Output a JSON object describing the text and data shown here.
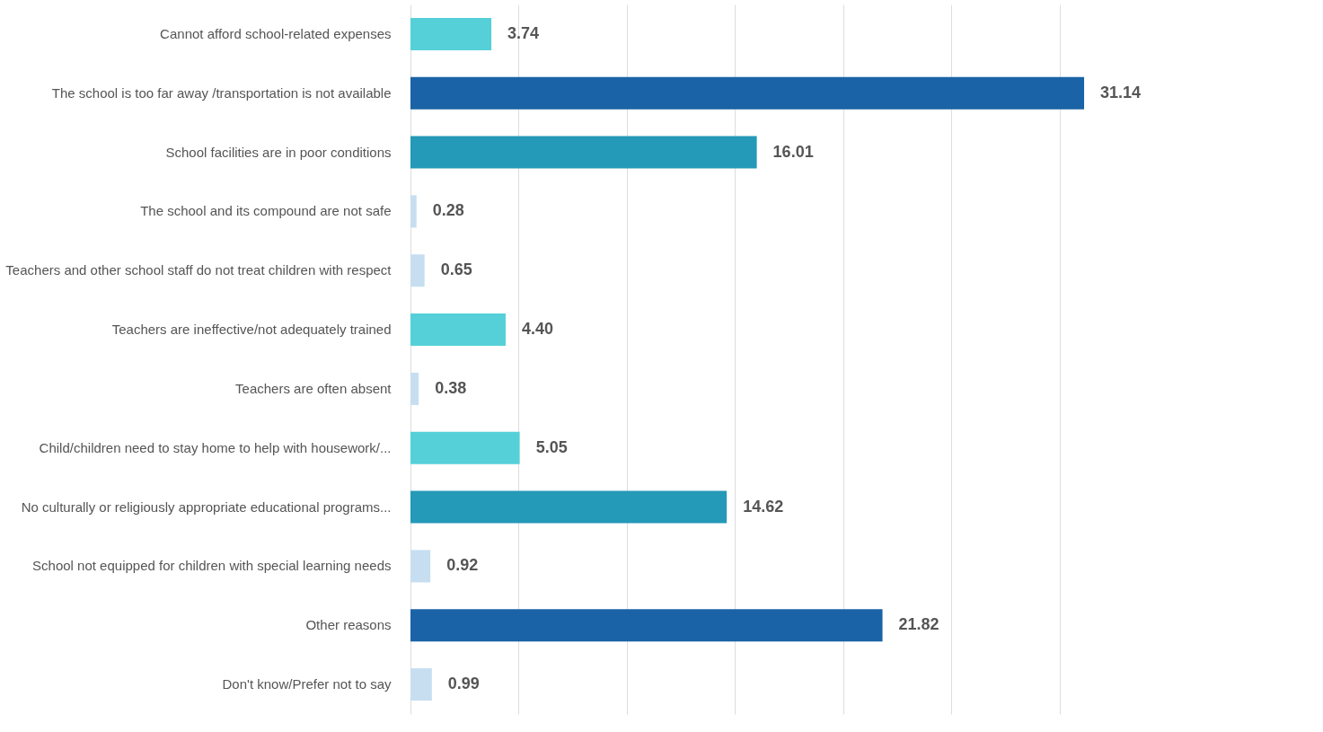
{
  "chart_data": {
    "type": "bar",
    "orientation": "horizontal",
    "categories": [
      "Cannot afford school-related expenses",
      "The school is too far away /transportation is not available",
      "School facilities are in poor conditions",
      "The school and its compound are not safe",
      "Teachers and other school staff do not treat children with respect",
      "Teachers are ineffective/not adequately trained",
      "Teachers are often absent",
      "Child/children need to stay home to help with housework/...",
      "No culturally or religiously appropriate educational programs...",
      "School not equipped for children with special learning needs",
      "Other reasons",
      "Don't know/Prefer not to say"
    ],
    "values": [
      3.74,
      31.14,
      16.01,
      0.28,
      0.65,
      4.4,
      0.38,
      5.05,
      14.62,
      0.92,
      21.82,
      0.99
    ],
    "value_labels": [
      "3.74",
      "31.14",
      "16.01",
      "0.28",
      "0.65",
      "4.40",
      "0.38",
      "5.05",
      "14.62",
      "0.92",
      "21.82",
      "0.99"
    ],
    "colors": [
      "#56d0d8",
      "#1a63a6",
      "#2499b8",
      "#c6def0",
      "#c6def0",
      "#56d0d8",
      "#c6def0",
      "#56d0d8",
      "#2499b8",
      "#c6def0",
      "#1a63a6",
      "#c6def0"
    ],
    "xlim": [
      0,
      35
    ],
    "xticks": [
      {
        "value": 0,
        "label": null
      },
      {
        "value": 5,
        "label": null
      },
      {
        "value": 10,
        "label": null
      },
      {
        "value": 15,
        "label": null
      },
      {
        "value": 20,
        "label": null
      },
      {
        "value": 25,
        "label": null
      },
      {
        "value": 30,
        "label": null
      }
    ],
    "grid": "x",
    "tick_labels": "y"
  }
}
